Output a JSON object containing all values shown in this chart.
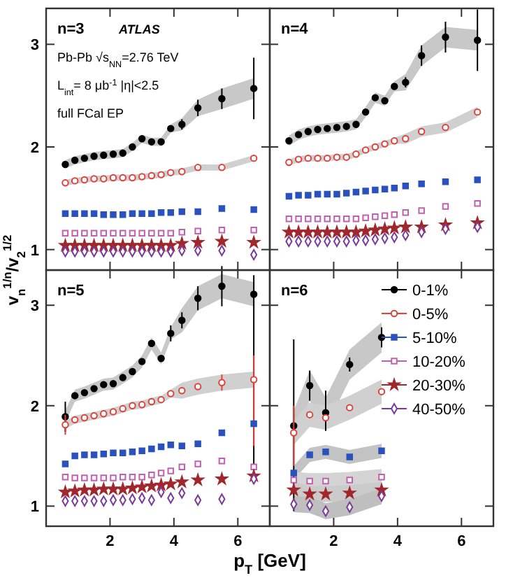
{
  "chart_data": [
    {
      "type": "scatter",
      "title": "n=3",
      "ylabel": "v$_{n}$$^{1/n}$/v$_{2}$$^{1/2}$",
      "annotations": [
        "ATLAS",
        "Pb-Pb √s$_{NN}$=2.76 TeV",
        "L$_{int}$= 8 μb$^{-1}$  |η|<2.5",
        "full FCal EP"
      ],
      "x": [
        0.6,
        0.9,
        1.2,
        1.5,
        1.8,
        2.1,
        2.4,
        2.7,
        3.0,
        3.3,
        3.6,
        3.9,
        4.25,
        4.75,
        5.5,
        6.5
      ],
      "xlim": [
        0,
        7
      ],
      "xticks": [
        2,
        4,
        6
      ],
      "ylim": [
        0.8,
        3.35
      ],
      "yticks": [
        1,
        2,
        3
      ],
      "tick_labels": "y",
      "series": [
        {
          "color": "#000000",
          "marker": "circle",
          "values": [
            1.83,
            1.87,
            1.89,
            1.91,
            1.92,
            1.93,
            1.94,
            2.0,
            2.08,
            2.05,
            2.05,
            2.18,
            2.22,
            2.38,
            2.47,
            2.57
          ],
          "errors": [
            null,
            null,
            null,
            null,
            null,
            null,
            null,
            null,
            null,
            null,
            null,
            null,
            0.05,
            0.08,
            0.1,
            0.3
          ],
          "lower": [
            1.79,
            1.83,
            1.85,
            1.87,
            1.88,
            1.89,
            1.9,
            1.96,
            2.04,
            2.01,
            2.01,
            2.14,
            2.16,
            2.3,
            2.37,
            2.47
          ],
          "upper": [
            1.87,
            1.91,
            1.93,
            1.95,
            1.96,
            1.97,
            1.98,
            2.04,
            2.12,
            2.09,
            2.09,
            2.22,
            2.28,
            2.46,
            2.57,
            2.67
          ]
        },
        {
          "color": "#e0413a",
          "marker": "circle",
          "values": [
            1.65,
            1.67,
            1.68,
            1.69,
            1.69,
            1.7,
            1.7,
            1.7,
            1.71,
            1.72,
            1.73,
            1.75,
            1.76,
            1.8,
            1.8,
            1.89
          ],
          "lower": [
            1.62,
            1.64,
            1.65,
            1.66,
            1.66,
            1.67,
            1.67,
            1.67,
            1.68,
            1.69,
            1.7,
            1.72,
            1.73,
            1.77,
            1.77,
            1.86
          ],
          "upper": [
            1.68,
            1.7,
            1.71,
            1.72,
            1.72,
            1.73,
            1.73,
            1.73,
            1.74,
            1.75,
            1.76,
            1.78,
            1.79,
            1.83,
            1.83,
            1.92
          ]
        },
        {
          "color": "#2a52be",
          "marker": "square",
          "values": [
            1.35,
            1.35,
            1.35,
            1.35,
            1.34,
            1.34,
            1.34,
            1.35,
            1.35,
            1.35,
            1.36,
            1.36,
            1.37,
            1.37,
            1.4,
            1.39
          ]
        },
        {
          "color": "#c060b0",
          "marker": "square",
          "values": [
            1.16,
            1.16,
            1.16,
            1.16,
            1.16,
            1.16,
            1.16,
            1.16,
            1.16,
            1.16,
            1.16,
            1.16,
            1.17,
            1.18,
            1.19,
            1.19
          ]
        },
        {
          "color": "#a0282c",
          "marker": "star",
          "values": [
            1.04,
            1.04,
            1.04,
            1.04,
            1.04,
            1.04,
            1.04,
            1.04,
            1.04,
            1.04,
            1.04,
            1.04,
            1.06,
            1.07,
            1.08,
            1.07
          ]
        },
        {
          "color": "#7a3a9a",
          "marker": "diamond",
          "values": [
            0.98,
            0.98,
            0.98,
            0.98,
            0.98,
            0.98,
            0.98,
            0.98,
            0.98,
            0.98,
            0.98,
            0.98,
            0.99,
            0.99,
            0.99,
            0.95
          ]
        }
      ]
    },
    {
      "type": "scatter",
      "title": "n=4",
      "x": [
        0.6,
        0.9,
        1.2,
        1.5,
        1.8,
        2.1,
        2.4,
        2.7,
        3.0,
        3.3,
        3.6,
        3.9,
        4.25,
        4.75,
        5.5,
        6.5
      ],
      "xlim": [
        0,
        7
      ],
      "xticks": [
        2,
        4,
        6
      ],
      "ylim": [
        0.8,
        3.35
      ],
      "yticks": [
        1,
        2,
        3
      ],
      "tick_labels": false,
      "series": [
        {
          "color": "#000000",
          "marker": "circle",
          "values": [
            2.06,
            2.12,
            2.15,
            2.17,
            2.18,
            2.19,
            2.2,
            2.22,
            2.34,
            2.48,
            2.45,
            2.59,
            2.63,
            2.89,
            3.07,
            3.04
          ],
          "errors": [
            null,
            null,
            null,
            null,
            null,
            null,
            null,
            null,
            null,
            null,
            null,
            null,
            0.05,
            0.1,
            0.15,
            0.3
          ],
          "lower": [
            2.01,
            2.07,
            2.1,
            2.12,
            2.13,
            2.14,
            2.15,
            2.17,
            2.29,
            2.43,
            2.4,
            2.54,
            2.55,
            2.79,
            2.97,
            2.94
          ],
          "upper": [
            2.11,
            2.17,
            2.2,
            2.22,
            2.23,
            2.24,
            2.25,
            2.27,
            2.39,
            2.53,
            2.5,
            2.64,
            2.71,
            2.99,
            3.17,
            3.14
          ]
        },
        {
          "color": "#e0413a",
          "marker": "circle",
          "values": [
            1.85,
            1.88,
            1.89,
            1.89,
            1.89,
            1.9,
            1.9,
            1.93,
            1.97,
            2.0,
            2.03,
            2.06,
            2.08,
            2.15,
            2.19,
            2.34
          ],
          "lower": [
            1.82,
            1.85,
            1.86,
            1.86,
            1.86,
            1.87,
            1.87,
            1.9,
            1.94,
            1.97,
            2.0,
            2.03,
            2.03,
            2.1,
            2.14,
            2.29
          ],
          "upper": [
            1.88,
            1.91,
            1.92,
            1.92,
            1.92,
            1.93,
            1.93,
            1.96,
            2.0,
            2.03,
            2.06,
            2.09,
            2.13,
            2.2,
            2.24,
            2.39
          ]
        },
        {
          "color": "#2a52be",
          "marker": "square",
          "values": [
            1.52,
            1.53,
            1.53,
            1.54,
            1.54,
            1.54,
            1.55,
            1.56,
            1.57,
            1.58,
            1.59,
            1.6,
            1.62,
            1.64,
            1.66,
            1.68
          ]
        },
        {
          "color": "#c060b0",
          "marker": "square",
          "values": [
            1.3,
            1.3,
            1.3,
            1.3,
            1.3,
            1.3,
            1.3,
            1.3,
            1.31,
            1.32,
            1.33,
            1.34,
            1.36,
            1.38,
            1.42,
            1.45
          ]
        },
        {
          "color": "#a0282c",
          "marker": "star",
          "values": [
            1.17,
            1.17,
            1.17,
            1.17,
            1.17,
            1.17,
            1.17,
            1.17,
            1.18,
            1.19,
            1.2,
            1.21,
            1.22,
            1.22,
            1.24,
            1.26
          ]
        },
        {
          "color": "#7a3a9a",
          "marker": "diamond",
          "values": [
            1.08,
            1.08,
            1.08,
            1.08,
            1.08,
            1.08,
            1.08,
            1.09,
            1.09,
            1.1,
            1.11,
            1.12,
            1.14,
            1.17,
            1.2,
            1.22
          ]
        }
      ]
    },
    {
      "type": "scatter",
      "title": "n=5",
      "xlabel": "p$_{T}$ [GeV]",
      "x": [
        0.6,
        0.9,
        1.2,
        1.5,
        1.8,
        2.1,
        2.4,
        2.7,
        3.0,
        3.3,
        3.6,
        3.9,
        4.25,
        4.75,
        5.5,
        6.5
      ],
      "xlim": [
        0,
        7
      ],
      "xticks": [
        2,
        4,
        6
      ],
      "ylim": [
        0.8,
        3.35
      ],
      "yticks": [
        1,
        2,
        3
      ],
      "series": [
        {
          "color": "#000000",
          "marker": "circle",
          "values": [
            1.89,
            2.1,
            2.13,
            2.17,
            2.21,
            2.22,
            2.28,
            2.34,
            2.44,
            2.62,
            2.47,
            2.72,
            2.85,
            3.07,
            3.19,
            3.11
          ],
          "errors": [
            0.15,
            null,
            null,
            null,
            null,
            null,
            null,
            null,
            null,
            null,
            null,
            0.08,
            0.08,
            0.12,
            0.2,
            [
              1.3,
              3.3
            ]
          ],
          "lower": [
            1.83,
            2.04,
            2.07,
            2.11,
            2.15,
            2.16,
            2.22,
            2.28,
            2.38,
            2.56,
            2.41,
            2.66,
            2.73,
            2.95,
            3.07,
            2.99
          ],
          "upper": [
            1.95,
            2.16,
            2.19,
            2.23,
            2.27,
            2.28,
            2.34,
            2.4,
            2.5,
            2.68,
            2.53,
            2.78,
            2.97,
            3.19,
            3.31,
            3.23
          ]
        },
        {
          "color": "#e0413a",
          "marker": "circle",
          "values": [
            1.81,
            1.86,
            1.88,
            1.9,
            1.92,
            1.94,
            1.97,
            2.0,
            2.01,
            2.04,
            2.06,
            2.12,
            2.15,
            2.19,
            2.23,
            2.26
          ],
          "errors": [
            0.1,
            null,
            null,
            null,
            null,
            null,
            null,
            null,
            null,
            null,
            null,
            null,
            null,
            null,
            0.08,
            [
              1.6,
              2.5
            ]
          ],
          "lower": [
            1.77,
            1.82,
            1.84,
            1.86,
            1.88,
            1.9,
            1.93,
            1.96,
            1.97,
            2.0,
            2.02,
            2.08,
            2.07,
            2.11,
            2.15,
            2.18
          ],
          "upper": [
            1.85,
            1.9,
            1.92,
            1.94,
            1.96,
            1.98,
            2.01,
            2.04,
            2.05,
            2.08,
            2.1,
            2.16,
            2.23,
            2.27,
            2.31,
            2.34
          ]
        },
        {
          "color": "#2a52be",
          "marker": "square",
          "values": [
            1.42,
            1.5,
            1.51,
            1.51,
            1.52,
            1.53,
            1.53,
            1.54,
            1.55,
            1.57,
            1.59,
            1.61,
            1.6,
            1.62,
            1.73,
            1.82
          ]
        },
        {
          "color": "#c060b0",
          "marker": "square",
          "values": [
            1.29,
            1.28,
            1.28,
            1.28,
            1.28,
            1.28,
            1.29,
            1.29,
            1.29,
            1.31,
            1.33,
            1.35,
            1.39,
            1.42,
            1.45,
            1.39
          ]
        },
        {
          "color": "#a0282c",
          "marker": "star",
          "values": [
            1.14,
            1.15,
            1.16,
            1.16,
            1.17,
            1.17,
            1.17,
            1.18,
            1.19,
            1.2,
            1.21,
            1.22,
            1.24,
            1.26,
            1.27,
            1.3
          ]
        },
        {
          "color": "#7a3a9a",
          "marker": "diamond",
          "values": [
            1.05,
            1.05,
            1.05,
            1.05,
            1.05,
            1.06,
            1.06,
            1.07,
            1.08,
            1.06,
            1.14,
            1.08,
            1.13,
            1.06,
            1.07,
            1.27
          ]
        }
      ]
    },
    {
      "type": "scatter",
      "title": "n=6",
      "legend": "top right",
      "x": [
        0.75,
        1.25,
        1.75,
        2.5,
        3.5
      ],
      "xlim": [
        0,
        7
      ],
      "xticks": [
        2,
        4,
        6
      ],
      "ylim": [
        0.8,
        3.35
      ],
      "yticks": [
        1,
        2,
        3
      ],
      "tick_labels": "x",
      "series": [
        {
          "name": "0-1%",
          "color": "#000000",
          "marker": "circle",
          "values": [
            1.8,
            2.2,
            1.93,
            2.41,
            2.68
          ],
          "errors": [
            [
              0.95,
              2.66
            ],
            0.15,
            [
              1.75,
              2.15
            ],
            0.07,
            0.1
          ],
          "lower": [
            1.65,
            2.05,
            1.78,
            2.26,
            2.53
          ],
          "upper": [
            1.95,
            2.35,
            2.08,
            2.56,
            2.83
          ]
        },
        {
          "name": "0-5%",
          "color": "#e0413a",
          "marker": "circle",
          "values": [
            1.73,
            1.91,
            1.88,
            1.98,
            2.14
          ],
          "errors": [
            [
              1.4,
              2.0
            ],
            null,
            null,
            null,
            null
          ],
          "lower": [
            1.61,
            1.79,
            1.76,
            1.86,
            2.02
          ],
          "upper": [
            1.85,
            2.03,
            2.0,
            2.1,
            2.26
          ]
        },
        {
          "name": "5-10%",
          "color": "#2a52be",
          "marker": "square",
          "values": [
            1.33,
            1.51,
            1.54,
            1.49,
            1.55
          ],
          "lower": [
            1.26,
            1.44,
            1.47,
            1.42,
            1.48
          ],
          "upper": [
            1.4,
            1.58,
            1.61,
            1.56,
            1.62
          ]
        },
        {
          "name": "10-20%",
          "color": "#c060b0",
          "marker": "square",
          "values": [
            1.26,
            1.25,
            1.25,
            1.26,
            1.29
          ],
          "lower": [
            1.18,
            1.17,
            1.17,
            1.18,
            1.21
          ],
          "upper": [
            1.34,
            1.33,
            1.33,
            1.34,
            1.37
          ]
        },
        {
          "name": "20-30%",
          "color": "#a0282c",
          "marker": "star",
          "values": [
            1.16,
            1.12,
            1.12,
            1.13,
            1.16
          ],
          "lower": [
            1.08,
            1.04,
            1.04,
            1.05,
            1.08
          ],
          "upper": [
            1.24,
            1.2,
            1.2,
            1.21,
            1.24
          ]
        },
        {
          "name": "40-50%",
          "color": "#7a3a9a",
          "marker": "diamond",
          "values": [
            1.02,
            1.01,
            0.95,
            0.99,
            1.1
          ],
          "lower": [
            0.94,
            0.93,
            0.87,
            0.91,
            1.02
          ],
          "upper": [
            1.1,
            1.09,
            1.03,
            1.07,
            1.18
          ]
        }
      ]
    }
  ]
}
